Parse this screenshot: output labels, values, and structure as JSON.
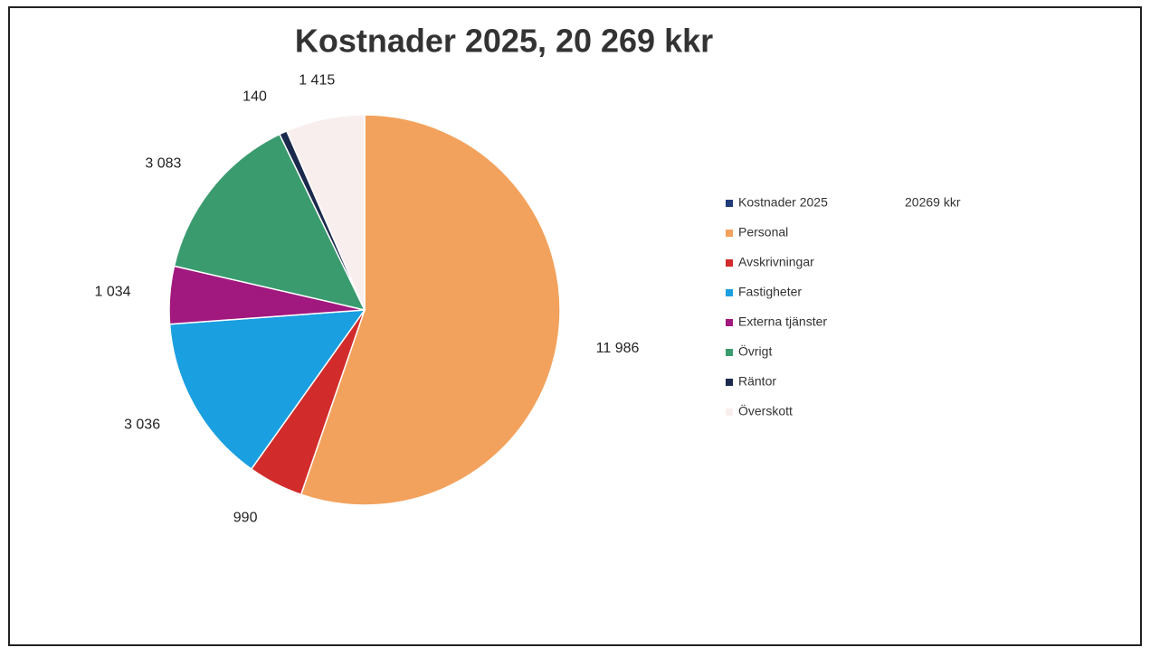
{
  "chart_data": {
    "type": "pie",
    "title": "Kostnader 2025,   20 269 kkr",
    "legend_title": "Kostnader 2025",
    "legend_total": "20269 kkr",
    "legend_title_color": "#1f3b7a",
    "categories": [
      "Personal",
      "Avskrivningar",
      "Fastigheter",
      "Externa tjänster",
      "Övrigt",
      "Räntor",
      "Överskott"
    ],
    "values": [
      11986,
      990,
      3036,
      1034,
      3083,
      140,
      1415
    ],
    "value_labels": [
      "11 986",
      "990",
      "3 036",
      "1 034",
      "3 083",
      "140",
      "1 415"
    ],
    "colors": [
      "#f2a25c",
      "#d22b2b",
      "#1a9fe0",
      "#a1187f",
      "#3a9b6f",
      "#1b2a4c",
      "#f9eeee"
    ],
    "legend": "right"
  }
}
